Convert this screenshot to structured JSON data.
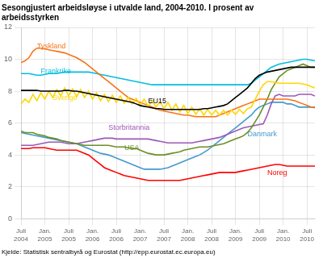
{
  "chart_data": {
    "type": "line",
    "title": "Sesongjustert arbeidsløyse i utvalde land, 2004-2010. I prosent av\narbeidsstyrken",
    "source": "Kjelde: Statistisk sentralbyrå og Eurostat (http://epp.eurostat.ec.europa.eu)",
    "grid": true,
    "xlim": [
      0,
      74
    ],
    "xticks": [
      {
        "value": 0,
        "label": "Juli\n2004"
      },
      {
        "value": 6,
        "label": "Jan.\n2005"
      },
      {
        "value": 12,
        "label": "Juli\n2005"
      },
      {
        "value": 18,
        "label": "Jan.\n2006"
      },
      {
        "value": 24,
        "label": "Juli\n2006"
      },
      {
        "value": 30,
        "label": "Jan.\n2007"
      },
      {
        "value": 36,
        "label": "Juli\n2007"
      },
      {
        "value": 42,
        "label": "Jan.\n2008"
      },
      {
        "value": 48,
        "label": "Juli\n2008"
      },
      {
        "value": 54,
        "label": "Jan.\n2009"
      },
      {
        "value": 60,
        "label": "Juli\n2009"
      },
      {
        "value": 66,
        "label": "Jan.\n2010"
      },
      {
        "value": 72,
        "label": "Juli\n2010"
      }
    ],
    "ylim": [
      0,
      12
    ],
    "yticks": [
      0,
      2,
      4,
      6,
      8,
      10,
      12
    ],
    "x": [
      0,
      1,
      2,
      3,
      4,
      5,
      6,
      7,
      8,
      9,
      10,
      11,
      12,
      13,
      14,
      15,
      16,
      17,
      18,
      19,
      20,
      21,
      22,
      23,
      24,
      25,
      26,
      27,
      28,
      29,
      30,
      31,
      32,
      33,
      34,
      35,
      36,
      37,
      38,
      39,
      40,
      41,
      42,
      43,
      44,
      45,
      46,
      47,
      48,
      49,
      50,
      51,
      52,
      53,
      54,
      55,
      56,
      57,
      58,
      59,
      60,
      61,
      62,
      63,
      64,
      65,
      66,
      67,
      68,
      69,
      70,
      71,
      72,
      73,
      74
    ],
    "series": [
      {
        "name": "Frankrike",
        "color": "#00BFDF",
        "values": [
          9.1,
          9.1,
          9.1,
          9.05,
          9.0,
          9.0,
          9.05,
          9.1,
          9.1,
          9.1,
          9.15,
          9.2,
          9.2,
          9.2,
          9.2,
          9.2,
          9.2,
          9.2,
          9.15,
          9.1,
          9.05,
          9.0,
          8.95,
          8.9,
          8.85,
          8.8,
          8.75,
          8.7,
          8.65,
          8.6,
          8.55,
          8.5,
          8.45,
          8.4,
          8.4,
          8.4,
          8.4,
          8.4,
          8.4,
          8.4,
          8.4,
          8.4,
          8.4,
          8.4,
          8.4,
          8.4,
          8.4,
          8.4,
          8.4,
          8.4,
          8.4,
          8.4,
          8.4,
          8.4,
          8.4,
          8.4,
          8.4,
          8.4,
          8.5,
          8.7,
          8.9,
          9.1,
          9.3,
          9.5,
          9.6,
          9.7,
          9.75,
          9.8,
          9.85,
          9.9,
          9.95,
          10.0,
          10.0,
          9.95,
          9.9
        ]
      },
      {
        "name": "Danmark",
        "color": "#4499CC",
        "values": [
          5.4,
          5.35,
          5.3,
          5.25,
          5.2,
          5.15,
          5.1,
          5.05,
          5.0,
          4.95,
          4.9,
          4.85,
          4.8,
          4.75,
          4.7,
          4.6,
          4.5,
          4.4,
          4.3,
          4.2,
          4.1,
          4.05,
          4.0,
          3.9,
          3.8,
          3.7,
          3.6,
          3.5,
          3.4,
          3.3,
          3.2,
          3.1,
          3.1,
          3.1,
          3.1,
          3.1,
          3.15,
          3.2,
          3.3,
          3.4,
          3.5,
          3.6,
          3.7,
          3.8,
          3.9,
          4.0,
          4.15,
          4.3,
          4.5,
          4.7,
          4.9,
          5.1,
          5.3,
          5.5,
          5.7,
          5.9,
          6.1,
          6.3,
          6.5,
          6.8,
          7.0,
          7.1,
          7.2,
          7.3,
          7.3,
          7.3,
          7.3,
          7.2,
          7.2,
          7.1,
          7.0,
          7.0,
          7.0,
          7.0,
          7.0
        ]
      },
      {
        "name": "Noreg",
        "color": "#FF0000",
        "values": [
          4.4,
          4.4,
          4.4,
          4.45,
          4.45,
          4.45,
          4.45,
          4.4,
          4.35,
          4.3,
          4.3,
          4.3,
          4.3,
          4.3,
          4.3,
          4.2,
          4.1,
          4.0,
          3.8,
          3.6,
          3.4,
          3.2,
          3.1,
          3.0,
          2.9,
          2.8,
          2.7,
          2.65,
          2.6,
          2.55,
          2.5,
          2.45,
          2.4,
          2.4,
          2.4,
          2.4,
          2.4,
          2.4,
          2.4,
          2.4,
          2.4,
          2.45,
          2.5,
          2.55,
          2.6,
          2.65,
          2.7,
          2.75,
          2.8,
          2.85,
          2.9,
          2.9,
          2.9,
          2.9,
          2.9,
          2.95,
          3.0,
          3.05,
          3.1,
          3.15,
          3.2,
          3.25,
          3.3,
          3.35,
          3.4,
          3.4,
          3.35,
          3.3,
          3.3,
          3.3,
          3.3,
          3.3,
          3.3,
          3.3,
          3.3
        ]
      },
      {
        "name": "Storbritannia",
        "color": "#9B59B6",
        "values": [
          4.6,
          4.6,
          4.6,
          4.6,
          4.65,
          4.7,
          4.75,
          4.8,
          4.8,
          4.8,
          4.8,
          4.75,
          4.7,
          4.7,
          4.7,
          4.75,
          4.8,
          4.85,
          4.9,
          4.95,
          5.0,
          5.05,
          5.05,
          5.05,
          5.0,
          5.0,
          5.0,
          5.0,
          5.0,
          5.0,
          5.0,
          5.0,
          5.0,
          4.95,
          4.9,
          4.85,
          4.8,
          4.75,
          4.75,
          4.75,
          4.75,
          4.75,
          4.75,
          4.75,
          4.8,
          4.85,
          4.9,
          4.95,
          5.0,
          5.05,
          5.1,
          5.2,
          5.3,
          5.4,
          5.5,
          5.6,
          5.7,
          5.75,
          5.8,
          5.85,
          5.9,
          5.95,
          6.5,
          7.2,
          7.7,
          7.8,
          7.7,
          7.7,
          7.7,
          7.7,
          7.8,
          7.8,
          7.8,
          7.8,
          7.7
        ]
      },
      {
        "name": "USA",
        "color": "#6B8E23",
        "values": [
          5.5,
          5.4,
          5.4,
          5.4,
          5.3,
          5.25,
          5.2,
          5.1,
          5.05,
          5.0,
          4.9,
          4.85,
          4.8,
          4.75,
          4.7,
          4.65,
          4.6,
          4.6,
          4.6,
          4.6,
          4.6,
          4.6,
          4.6,
          4.55,
          4.5,
          4.5,
          4.5,
          4.45,
          4.4,
          4.4,
          4.3,
          4.2,
          4.1,
          4.05,
          4.0,
          4.0,
          4.0,
          4.05,
          4.1,
          4.15,
          4.2,
          4.3,
          4.35,
          4.4,
          4.45,
          4.5,
          4.5,
          4.5,
          4.55,
          4.6,
          4.65,
          4.7,
          4.8,
          4.9,
          5.0,
          5.1,
          5.2,
          5.4,
          5.7,
          6.1,
          6.5,
          7.0,
          7.5,
          8.1,
          8.5,
          8.9,
          9.1,
          9.3,
          9.4,
          9.5,
          9.6,
          9.7,
          9.6,
          9.5,
          9.5
        ]
      },
      {
        "name": "Tyskland",
        "color": "#F97316",
        "values": [
          9.8,
          9.9,
          10.1,
          10.5,
          10.7,
          10.7,
          10.65,
          10.6,
          10.55,
          10.5,
          10.45,
          10.4,
          10.3,
          10.2,
          10.1,
          9.95,
          9.8,
          9.6,
          9.4,
          9.2,
          9.0,
          8.8,
          8.6,
          8.4,
          8.2,
          8.0,
          7.8,
          7.6,
          7.5,
          7.4,
          7.3,
          7.2,
          7.1,
          7.0,
          6.9,
          6.8,
          6.75,
          6.7,
          6.65,
          6.6,
          6.55,
          6.5,
          6.5,
          6.45,
          6.4,
          6.4,
          6.4,
          6.4,
          6.4,
          6.4,
          6.5,
          6.6,
          6.7,
          6.8,
          6.9,
          7.0,
          7.1,
          7.2,
          7.3,
          7.4,
          7.5,
          7.5,
          7.5,
          7.5,
          7.5,
          7.5,
          7.5,
          7.5,
          7.45,
          7.4,
          7.3,
          7.2,
          7.1,
          7.0,
          6.95
        ]
      },
      {
        "name": "Sverige",
        "color": "#FFD700",
        "values": [
          7.2,
          7.5,
          7.3,
          7.8,
          7.4,
          7.9,
          7.5,
          8.0,
          7.6,
          8.1,
          7.7,
          8.2,
          7.7,
          8.15,
          7.65,
          8.1,
          7.6,
          8.0,
          7.5,
          7.9,
          7.4,
          7.8,
          7.35,
          7.75,
          7.3,
          7.7,
          7.25,
          7.6,
          7.2,
          7.55,
          7.1,
          7.5,
          7.05,
          7.4,
          7.0,
          7.35,
          6.9,
          7.3,
          6.8,
          7.2,
          6.7,
          7.1,
          6.6,
          7.0,
          6.55,
          6.9,
          6.5,
          6.85,
          6.5,
          6.8,
          6.5,
          6.8,
          6.5,
          6.8,
          6.55,
          6.85,
          6.6,
          6.9,
          7.0,
          7.5,
          8.0,
          8.4,
          8.6,
          8.6,
          8.55,
          8.5,
          8.5,
          8.5,
          8.5,
          8.5,
          8.5,
          8.45,
          8.4,
          8.3,
          8.2
        ]
      },
      {
        "name": "EU15",
        "color": "#000000",
        "values": [
          8.05,
          8.05,
          8.05,
          8.05,
          8.05,
          8.0,
          8.0,
          8.0,
          8.0,
          8.0,
          8.0,
          8.05,
          8.05,
          8.0,
          8.0,
          7.95,
          7.9,
          7.85,
          7.8,
          7.75,
          7.7,
          7.65,
          7.6,
          7.55,
          7.5,
          7.45,
          7.4,
          7.35,
          7.3,
          7.2,
          7.1,
          7.05,
          7.0,
          6.95,
          6.9,
          6.9,
          6.85,
          6.85,
          6.85,
          6.85,
          6.85,
          6.85,
          6.85,
          6.85,
          6.85,
          6.85,
          6.9,
          6.9,
          6.95,
          7.0,
          7.05,
          7.1,
          7.2,
          7.4,
          7.6,
          7.8,
          8.0,
          8.2,
          8.5,
          8.8,
          9.0,
          9.1,
          9.2,
          9.25,
          9.3,
          9.35,
          9.4,
          9.45,
          9.5,
          9.5,
          9.5,
          9.5,
          9.5,
          9.5,
          9.5
        ]
      }
    ],
    "annotations": [
      {
        "text": "Tyskland",
        "x": 4,
        "y": 10.8,
        "color": "#F97316"
      },
      {
        "text": "Frankrike",
        "x": 5,
        "y": 9.25,
        "color": "#00BFDF"
      },
      {
        "text": "Sverige",
        "x": 8,
        "y": 7.55,
        "color": "#FFD700"
      },
      {
        "text": "EU15",
        "x": 32,
        "y": 7.35,
        "color": "#000000"
      },
      {
        "text": "Storbritannia",
        "x": 22,
        "y": 5.7,
        "color": "#9B59B6"
      },
      {
        "text": "USA",
        "x": 26,
        "y": 4.45,
        "color": "#6B8E23"
      },
      {
        "text": "Danmark",
        "x": 57,
        "y": 5.3,
        "color": "#4499CC"
      },
      {
        "text": "Noreg",
        "x": 62,
        "y": 2.85,
        "color": "#FF0000"
      }
    ]
  }
}
